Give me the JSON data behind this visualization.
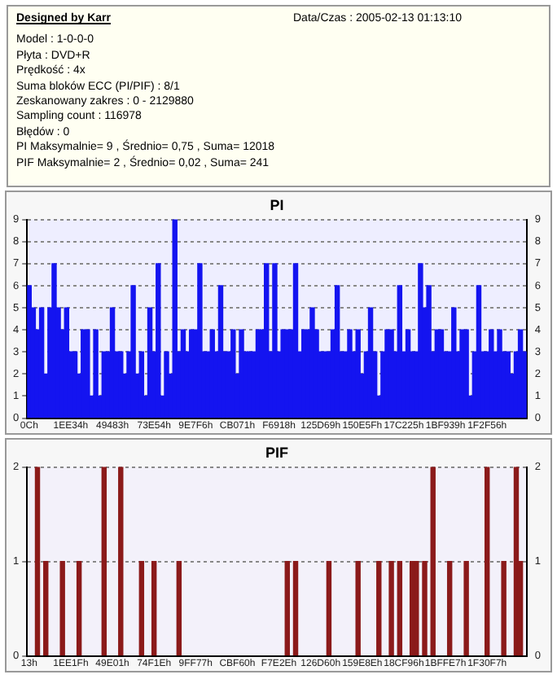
{
  "chart_data": [
    {
      "type": "other",
      "title": "Designed by Karr",
      "annotations": [
        "Data/Czas : 2005-02-13 01:13:10",
        "Model : 1-0-0-0",
        "Płyta : DVD+R",
        "Prędkość : 4x",
        "Suma bloków ECC (PI/PIF) : 8/1",
        "Zeskanowany zakres : 0 - 2129880",
        "Sampling count : 116978",
        "Błędów : 0",
        "PI Maksymalnie= 9 , Średnio= 0,75 , Suma= 12018",
        "PIF Maksymalnie= 2 , Średnio= 0,02 , Suma= 241"
      ]
    },
    {
      "type": "bar",
      "title": "PI",
      "color": "#1414f0",
      "grid": "y",
      "ylim": [
        0,
        9
      ],
      "yticks": [
        0,
        1,
        2,
        3,
        4,
        5,
        6,
        7,
        8,
        9
      ],
      "y2lim": [
        0,
        9
      ],
      "y2ticks": [
        0,
        1,
        2,
        3,
        4,
        5,
        6,
        7,
        8,
        9
      ],
      "categories": [
        "0Ch",
        null,
        null,
        null,
        null,
        null,
        null,
        null,
        null,
        null,
        "1EE34h",
        null,
        null,
        null,
        null,
        null,
        null,
        null,
        null,
        null,
        "49483h",
        null,
        null,
        null,
        null,
        null,
        null,
        null,
        null,
        null,
        "73E54h",
        null,
        null,
        null,
        null,
        null,
        null,
        null,
        null,
        null,
        "9E7F6h",
        null,
        null,
        null,
        null,
        null,
        null,
        null,
        null,
        null,
        "CB071h",
        null,
        null,
        null,
        null,
        null,
        null,
        null,
        null,
        null,
        "F6918h",
        null,
        null,
        null,
        null,
        null,
        null,
        null,
        null,
        null,
        "125D69h",
        null,
        null,
        null,
        null,
        null,
        null,
        null,
        null,
        null,
        "150E5Fh",
        null,
        null,
        null,
        null,
        null,
        null,
        null,
        null,
        null,
        "17C225h",
        null,
        null,
        null,
        null,
        null,
        null,
        null,
        null,
        null,
        "1BF939h",
        null,
        null,
        null,
        null,
        null,
        null,
        null,
        null,
        null,
        "1F2F56h",
        null,
        null,
        null,
        null,
        null,
        null,
        null,
        null,
        null
      ],
      "values": [
        6,
        5,
        4,
        5,
        2,
        5,
        7,
        5,
        4,
        5,
        3,
        3,
        2,
        4,
        4,
        1,
        4,
        1,
        3,
        3,
        5,
        3,
        3,
        2,
        3,
        6,
        2,
        3,
        1,
        5,
        3,
        7,
        1,
        3,
        2,
        9,
        3,
        4,
        3,
        4,
        4,
        7,
        3,
        3,
        4,
        3,
        6,
        3,
        3,
        4,
        2,
        4,
        3,
        3,
        3,
        4,
        4,
        7,
        3,
        7,
        3,
        4,
        4,
        4,
        7,
        3,
        4,
        4,
        5,
        4,
        3,
        3,
        3,
        4,
        6,
        3,
        3,
        4,
        3,
        4,
        2,
        3,
        5,
        3,
        1,
        3,
        4,
        4,
        3,
        6,
        3,
        4,
        3,
        3,
        7,
        5,
        6,
        3,
        4,
        4,
        3,
        3,
        5,
        3,
        4,
        4,
        1,
        3,
        6,
        3,
        3,
        4,
        3,
        4,
        3,
        3,
        2,
        3,
        4,
        3
      ]
    },
    {
      "type": "bar",
      "title": "PIF",
      "color": "#8b1a1a",
      "grid": "y",
      "ylim": [
        0,
        2
      ],
      "yticks": [
        0,
        1,
        2
      ],
      "y2lim": [
        0,
        2
      ],
      "y2ticks": [
        0,
        1,
        2
      ],
      "categories": [
        "13h",
        null,
        null,
        null,
        null,
        null,
        null,
        null,
        null,
        null,
        "1EE1Fh",
        null,
        null,
        null,
        null,
        null,
        null,
        null,
        null,
        null,
        "49E01h",
        null,
        null,
        null,
        null,
        null,
        null,
        null,
        null,
        null,
        "74F1Eh",
        null,
        null,
        null,
        null,
        null,
        null,
        null,
        null,
        null,
        "9FF77h",
        null,
        null,
        null,
        null,
        null,
        null,
        null,
        null,
        null,
        "CBF60h",
        null,
        null,
        null,
        null,
        null,
        null,
        null,
        null,
        null,
        "F7E2Eh",
        null,
        null,
        null,
        null,
        null,
        null,
        null,
        null,
        null,
        "126D60h",
        null,
        null,
        null,
        null,
        null,
        null,
        null,
        null,
        null,
        "159E8Eh",
        null,
        null,
        null,
        null,
        null,
        null,
        null,
        null,
        null,
        "18CF96h",
        null,
        null,
        null,
        null,
        null,
        null,
        null,
        null,
        null,
        "1BFFE7h",
        null,
        null,
        null,
        null,
        null,
        null,
        null,
        null,
        null,
        "1F30F7h",
        null,
        null,
        null,
        null,
        null,
        null,
        null,
        null,
        null
      ],
      "values": [
        0,
        0,
        2,
        0,
        1,
        0,
        0,
        0,
        1,
        0,
        0,
        0,
        1,
        0,
        0,
        0,
        0,
        0,
        2,
        0,
        0,
        0,
        2,
        0,
        0,
        0,
        0,
        1,
        0,
        0,
        1,
        0,
        0,
        0,
        0,
        0,
        1,
        0,
        0,
        0,
        0,
        0,
        0,
        0,
        0,
        0,
        0,
        0,
        0,
        0,
        0,
        0,
        0,
        0,
        0,
        0,
        0,
        0,
        0,
        0,
        0,
        0,
        1,
        0,
        1,
        0,
        0,
        0,
        0,
        0,
        0,
        0,
        1,
        0,
        0,
        0,
        0,
        0,
        0,
        1,
        0,
        0,
        0,
        0,
        1,
        0,
        0,
        1,
        0,
        1,
        0,
        0,
        1,
        1,
        0,
        1,
        0,
        2,
        0,
        0,
        0,
        1,
        0,
        0,
        0,
        1,
        0,
        0,
        0,
        0,
        2,
        0,
        0,
        0,
        1,
        0,
        0,
        2,
        1,
        0
      ]
    }
  ]
}
